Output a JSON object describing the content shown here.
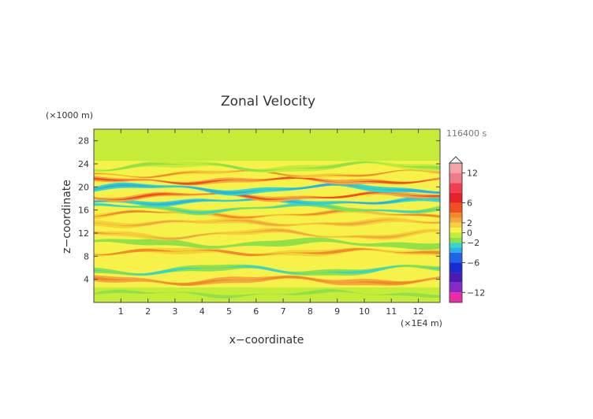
{
  "chart_data": {
    "type": "heatmap",
    "title": "Zonal Velocity",
    "xlabel": "x−coordinate",
    "ylabel": "z−coordinate",
    "x_unit": "(×1E4 m)",
    "y_unit": "(×1000 m)",
    "time_label": "116400 s",
    "xlim": [
      0,
      12.8
    ],
    "ylim": [
      0,
      30
    ],
    "x_ticks": [
      1,
      2,
      3,
      4,
      5,
      6,
      7,
      8,
      9,
      10,
      11,
      12
    ],
    "y_ticks": [
      4,
      8,
      12,
      16,
      20,
      24,
      28
    ],
    "colorbar": {
      "ticks": [
        12,
        6,
        2,
        0,
        -2,
        -6,
        -12
      ],
      "tick_labels": [
        "12",
        "6",
        "2",
        "0",
        "−2",
        "−6",
        "−12"
      ],
      "levels": [
        {
          "from": 12,
          "to": 14,
          "color": "#f4a3a8"
        },
        {
          "from": 10,
          "to": 12,
          "color": "#f07a86"
        },
        {
          "from": 8,
          "to": 10,
          "color": "#ee4050"
        },
        {
          "from": 6,
          "to": 8,
          "color": "#e8202a"
        },
        {
          "from": 4,
          "to": 6,
          "color": "#f05020"
        },
        {
          "from": 3,
          "to": 4,
          "color": "#f28a2a"
        },
        {
          "from": 2,
          "to": 3,
          "color": "#f4a640"
        },
        {
          "from": 1,
          "to": 2,
          "color": "#f6d23a"
        },
        {
          "from": 0,
          "to": 1,
          "color": "#f6f24a"
        },
        {
          "from": -1,
          "to": 0,
          "color": "#c6ec3a"
        },
        {
          "from": -2,
          "to": -1,
          "color": "#90e04a"
        },
        {
          "from": -3,
          "to": -2,
          "color": "#38d6c8"
        },
        {
          "from": -4,
          "to": -3,
          "color": "#27b2ea"
        },
        {
          "from": -6,
          "to": -4,
          "color": "#1e64e6"
        },
        {
          "from": -8,
          "to": -6,
          "color": "#1a2ad2"
        },
        {
          "from": -10,
          "to": -8,
          "color": "#4a1ab6"
        },
        {
          "from": -12,
          "to": -10,
          "color": "#8a28c6"
        },
        {
          "from": -14,
          "to": -12,
          "color": "#ee2aa6"
        }
      ]
    },
    "bands": [
      {
        "z": 1.5,
        "dz": 1.2,
        "u": -1.5
      },
      {
        "z": 3.8,
        "dz": 1.0,
        "u": 3.5
      },
      {
        "z": 5.6,
        "dz": 1.0,
        "u": -2.5
      },
      {
        "z": 8.7,
        "dz": 1.0,
        "u": 3.0
      },
      {
        "z": 10.2,
        "dz": 1.0,
        "u": -2.0
      },
      {
        "z": 11.8,
        "dz": 0.8,
        "u": 2.0
      },
      {
        "z": 13.8,
        "dz": 0.9,
        "u": 2.5
      },
      {
        "z": 15.3,
        "dz": 0.8,
        "u": 3.0
      },
      {
        "z": 16.3,
        "dz": 0.8,
        "u": -2.5
      },
      {
        "z": 17.5,
        "dz": 0.8,
        "u": -3.5
      },
      {
        "z": 18.4,
        "dz": 0.8,
        "u": 4.0
      },
      {
        "z": 19.7,
        "dz": 0.9,
        "u": -4.0
      },
      {
        "z": 21.1,
        "dz": 0.8,
        "u": 4.0
      },
      {
        "z": 22.3,
        "dz": 0.6,
        "u": 3.0
      },
      {
        "z": 23.5,
        "dz": 1.0,
        "u": -1.5
      }
    ]
  }
}
